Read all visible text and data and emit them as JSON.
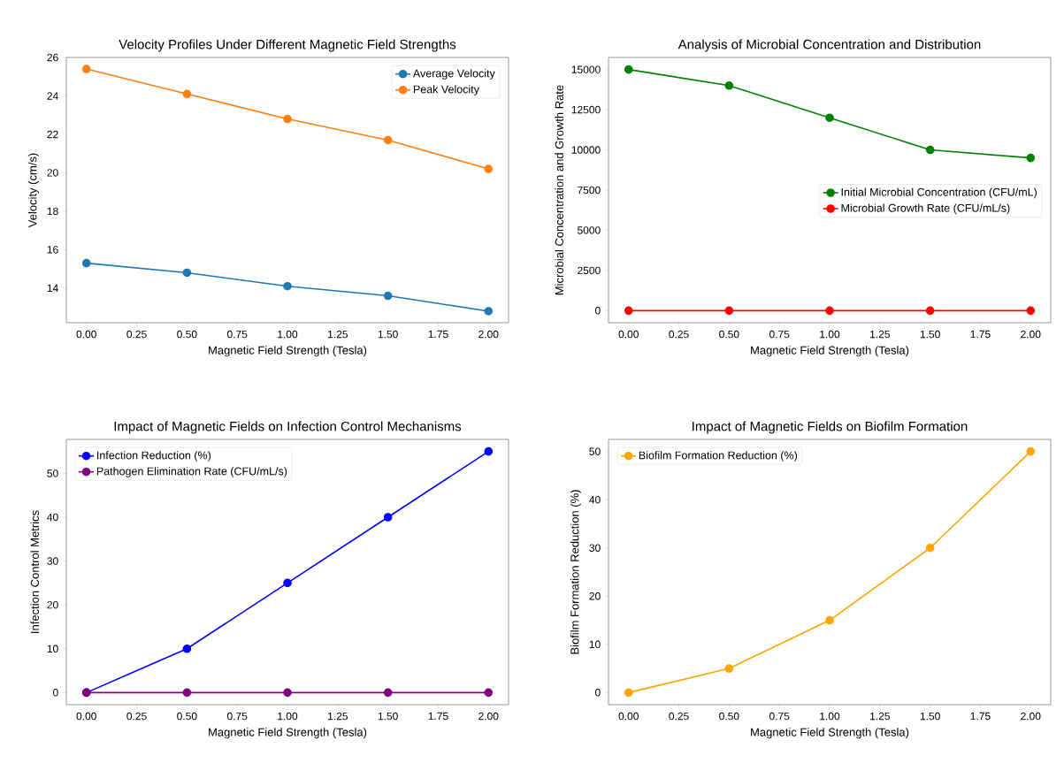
{
  "chart_data": [
    {
      "type": "line",
      "title": "Velocity Profiles Under Different Magnetic Field Strengths",
      "xlabel": "Magnetic Field Strength (Tesla)",
      "ylabel": "Velocity (cm/s)",
      "x": [
        0,
        0.5,
        1,
        1.5,
        2
      ],
      "series": [
        {
          "name": "Average Velocity",
          "color": "#1f77b4",
          "values": [
            15.3,
            14.8,
            14.1,
            13.6,
            12.8
          ]
        },
        {
          "name": "Peak Velocity",
          "color": "#ff7f0e",
          "values": [
            25.4,
            24.1,
            22.8,
            21.7,
            20.2
          ]
        }
      ],
      "xlim": [
        -0.1,
        2.1
      ],
      "ylim": [
        12.2,
        26.0
      ],
      "xticks": [
        {
          "value": 0,
          "label": "0.00"
        },
        {
          "value": 0.25,
          "label": "0.25"
        },
        {
          "value": 0.5,
          "label": "0.50"
        },
        {
          "value": 0.75,
          "label": "0.75"
        },
        {
          "value": 1,
          "label": "1.00"
        },
        {
          "value": 1.25,
          "label": "1.25"
        },
        {
          "value": 1.5,
          "label": "1.50"
        },
        {
          "value": 1.75,
          "label": "1.75"
        },
        {
          "value": 2,
          "label": "2.00"
        }
      ],
      "yticks": [
        14,
        16,
        18,
        20,
        22,
        24,
        26
      ],
      "legend": "top right",
      "marker": "circle"
    },
    {
      "type": "line",
      "title": "Analysis of Microbial Concentration and Distribution",
      "xlabel": "Magnetic Field Strength (Tesla)",
      "ylabel": "Microbial Concentration and Growth Rate",
      "x": [
        0,
        0.5,
        1,
        1.5,
        2
      ],
      "series": [
        {
          "name": "Initial Microbial Concentration (CFU/mL)",
          "color": "#008000",
          "values": [
            15000,
            14000,
            12000,
            10000,
            9500
          ]
        },
        {
          "name": "Microbial Growth Rate (CFU/mL/s)",
          "color": "#ff0000",
          "values": [
            0,
            0,
            0,
            0,
            0
          ]
        }
      ],
      "xlim": [
        -0.1,
        2.1
      ],
      "ylim": [
        -750,
        15750
      ],
      "xticks": [
        {
          "value": 0,
          "label": "0.00"
        },
        {
          "value": 0.25,
          "label": "0.25"
        },
        {
          "value": 0.5,
          "label": "0.50"
        },
        {
          "value": 0.75,
          "label": "0.75"
        },
        {
          "value": 1,
          "label": "1.00"
        },
        {
          "value": 1.25,
          "label": "1.25"
        },
        {
          "value": 1.5,
          "label": "1.50"
        },
        {
          "value": 1.75,
          "label": "1.75"
        },
        {
          "value": 2,
          "label": "2.00"
        }
      ],
      "yticks": [
        0,
        2500,
        5000,
        7500,
        10000,
        12500,
        15000
      ],
      "legend": "right",
      "marker": "circle"
    },
    {
      "type": "line",
      "title": "Impact of Magnetic Fields on Infection Control Mechanisms",
      "xlabel": "Magnetic Field Strength (Tesla)",
      "ylabel": "Infection Control Metrics",
      "x": [
        0,
        0.5,
        1,
        1.5,
        2
      ],
      "series": [
        {
          "name": "Infection Reduction (%)",
          "color": "#0000ff",
          "values": [
            0,
            10,
            25,
            40,
            55
          ]
        },
        {
          "name": "Pathogen Elimination Rate (CFU/mL/s)",
          "color": "#800080",
          "values": [
            0,
            0,
            0,
            0,
            0
          ]
        }
      ],
      "xlim": [
        -0.1,
        2.1
      ],
      "ylim": [
        -2.75,
        57.75
      ],
      "xticks": [
        {
          "value": 0,
          "label": "0.00"
        },
        {
          "value": 0.25,
          "label": "0.25"
        },
        {
          "value": 0.5,
          "label": "0.50"
        },
        {
          "value": 0.75,
          "label": "0.75"
        },
        {
          "value": 1,
          "label": "1.00"
        },
        {
          "value": 1.25,
          "label": "1.25"
        },
        {
          "value": 1.5,
          "label": "1.50"
        },
        {
          "value": 1.75,
          "label": "1.75"
        },
        {
          "value": 2,
          "label": "2.00"
        }
      ],
      "yticks": [
        0,
        10,
        20,
        30,
        40,
        50
      ],
      "legend": "top left",
      "marker": "circle"
    },
    {
      "type": "line",
      "title": "Impact of Magnetic Fields on Biofilm Formation",
      "xlabel": "Magnetic Field Strength (Tesla)",
      "ylabel": "Biofilm Formation Reduction (%)",
      "x": [
        0,
        0.5,
        1,
        1.5,
        2
      ],
      "series": [
        {
          "name": "Biofilm Formation Reduction (%)",
          "color": "#ffa500",
          "values": [
            0,
            5,
            15,
            30,
            50
          ]
        }
      ],
      "xlim": [
        -0.1,
        2.1
      ],
      "ylim": [
        -2.5,
        52.5
      ],
      "xticks": [
        {
          "value": 0,
          "label": "0.00"
        },
        {
          "value": 0.25,
          "label": "0.25"
        },
        {
          "value": 0.5,
          "label": "0.50"
        },
        {
          "value": 0.75,
          "label": "0.75"
        },
        {
          "value": 1,
          "label": "1.00"
        },
        {
          "value": 1.25,
          "label": "1.25"
        },
        {
          "value": 1.5,
          "label": "1.50"
        },
        {
          "value": 1.75,
          "label": "1.75"
        },
        {
          "value": 2,
          "label": "2.00"
        }
      ],
      "yticks": [
        0,
        10,
        20,
        30,
        40,
        50
      ],
      "legend": "top left",
      "marker": "circle"
    }
  ]
}
